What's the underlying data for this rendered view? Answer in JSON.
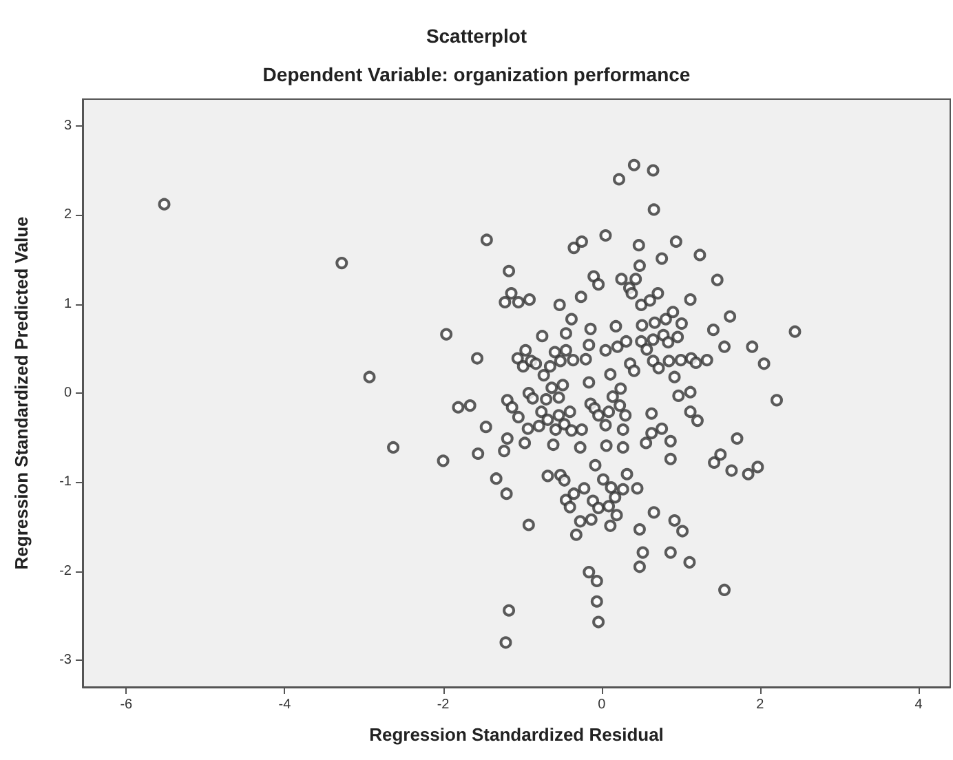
{
  "chart_data": {
    "type": "scatter",
    "title": "Scatterplot",
    "subtitle": "Dependent Variable: organization performance",
    "xlabel": "Regression Standardized Residual",
    "ylabel": "Regression Standardized Predicted Value",
    "xlim": [
      -6.55,
      4.4
    ],
    "ylim": [
      -3.3,
      3.3
    ],
    "xticks": [
      -6,
      -4,
      -2,
      0,
      2,
      4
    ],
    "yticks": [
      -3,
      -2,
      -1,
      0,
      1,
      2,
      3
    ],
    "grid": false,
    "marker": "circle",
    "series": [
      {
        "color": "#333333",
        "x": [
          -5.52,
          -3.28,
          -2.93,
          -2.63,
          -2.0,
          -1.96,
          -1.81,
          -1.66,
          -1.57,
          -1.56,
          -1.46,
          -1.45,
          -1.33,
          -1.23,
          -1.2,
          -1.19,
          -1.19,
          -1.17,
          -1.14,
          -1.22,
          -1.05,
          -0.91,
          -1.13,
          -1.05,
          -1.06,
          -0.99,
          -0.96,
          -0.93,
          -0.97,
          -0.92,
          -0.87,
          -0.89,
          -0.83,
          -0.92,
          -1.17,
          -1.21,
          -0.75,
          -0.73,
          -0.76,
          -0.79,
          -0.68,
          -0.7,
          -0.68,
          -0.63,
          -0.65,
          -0.61,
          -0.58,
          -0.59,
          -0.54,
          -0.53,
          -0.52,
          -0.52,
          -0.49,
          -0.54,
          -0.47,
          -0.47,
          -0.45,
          -0.45,
          -0.45,
          -0.4,
          -0.38,
          -0.4,
          -0.38,
          -0.36,
          -0.35,
          -0.35,
          -0.32,
          -0.27,
          -0.26,
          -0.25,
          -0.27,
          -0.25,
          -0.22,
          -0.2,
          -0.16,
          -0.16,
          -0.14,
          -0.14,
          -0.16,
          -0.13,
          -0.11,
          -0.09,
          -0.08,
          -0.1,
          -0.04,
          -0.06,
          -0.06,
          -0.04,
          -0.04,
          -0.04,
          0.02,
          0.05,
          0.05,
          0.05,
          0.06,
          0.09,
          0.09,
          0.11,
          0.11,
          0.12,
          0.14,
          0.17,
          0.18,
          0.19,
          0.2,
          0.22,
          0.23,
          0.24,
          0.25,
          0.27,
          0.27,
          0.27,
          0.3,
          0.31,
          0.32,
          0.35,
          0.36,
          0.38,
          0.41,
          0.41,
          0.43,
          0.45,
          0.47,
          0.48,
          0.48,
          0.48,
          0.5,
          0.52,
          0.51,
          0.5,
          0.56,
          0.57,
          0.61,
          0.63,
          0.65,
          0.65,
          0.66,
          0.65,
          0.63,
          0.67,
          0.66,
          0.71,
          0.72,
          0.76,
          0.76,
          0.78,
          0.81,
          0.85,
          0.84,
          0.87,
          0.87,
          0.87,
          0.9,
          0.92,
          0.92,
          0.94,
          0.96,
          0.97,
          1.02,
          1.01,
          1.0,
          1.12,
          1.13,
          1.12,
          1.11,
          1.12,
          1.19,
          1.21,
          1.24,
          1.33,
          1.41,
          1.42,
          1.46,
          1.5,
          1.55,
          1.55,
          1.62,
          1.64,
          1.71,
          1.85,
          1.9,
          1.97,
          2.05,
          2.21,
          2.44
        ],
        "values": [
          2.12,
          1.46,
          0.18,
          -0.61,
          -0.76,
          0.66,
          -0.16,
          -0.14,
          0.39,
          -0.68,
          -0.38,
          1.72,
          -0.96,
          -0.65,
          -1.13,
          -0.51,
          -0.08,
          1.37,
          1.12,
          1.02,
          1.02,
          1.05,
          -0.16,
          -0.27,
          0.39,
          0.3,
          0.48,
          -0.4,
          -0.56,
          0.0,
          -0.06,
          0.36,
          0.33,
          -1.48,
          -2.44,
          -2.8,
          0.64,
          0.2,
          -0.21,
          -0.37,
          -0.3,
          -0.07,
          -0.93,
          0.06,
          0.3,
          -0.58,
          -0.41,
          0.46,
          -0.25,
          0.99,
          0.36,
          -0.92,
          0.09,
          -0.05,
          -0.98,
          -0.35,
          0.67,
          0.48,
          -1.2,
          -0.21,
          -0.42,
          -1.28,
          0.83,
          0.37,
          1.63,
          -1.13,
          -1.59,
          -1.44,
          1.08,
          1.7,
          -0.61,
          -0.41,
          -1.07,
          0.38,
          0.12,
          -2.01,
          0.72,
          -0.12,
          0.54,
          -1.42,
          -1.21,
          -0.17,
          -0.81,
          1.31,
          1.22,
          -2.11,
          -2.34,
          -2.57,
          -0.25,
          -1.29,
          -0.97,
          1.77,
          0.48,
          -0.36,
          -0.59,
          -0.21,
          -1.27,
          0.21,
          -1.49,
          -1.06,
          -0.04,
          -1.17,
          0.75,
          -1.37,
          0.52,
          2.4,
          -0.14,
          0.05,
          1.28,
          -0.41,
          -0.61,
          -1.08,
          -0.25,
          0.58,
          -0.91,
          1.18,
          0.33,
          1.12,
          0.25,
          2.56,
          1.28,
          -1.07,
          1.66,
          1.43,
          -1.53,
          -1.95,
          0.99,
          -1.79,
          0.76,
          0.58,
          -0.56,
          0.49,
          1.04,
          -0.23,
          2.5,
          0.36,
          2.06,
          0.6,
          -0.45,
          0.79,
          -1.34,
          1.12,
          0.28,
          -0.4,
          1.51,
          0.65,
          0.83,
          0.36,
          0.57,
          -0.54,
          -0.74,
          -1.79,
          0.91,
          0.18,
          -1.43,
          1.7,
          0.63,
          -0.03,
          -1.55,
          0.78,
          0.37,
          1.05,
          0.39,
          0.01,
          -1.9,
          -0.21,
          0.34,
          -0.31,
          1.55,
          0.37,
          0.71,
          -0.78,
          1.27,
          -0.69,
          0.52,
          -2.21,
          0.86,
          -0.87,
          -0.51,
          -0.91,
          0.52,
          -0.83,
          0.33,
          -0.08,
          0.69
        ]
      }
    ]
  }
}
